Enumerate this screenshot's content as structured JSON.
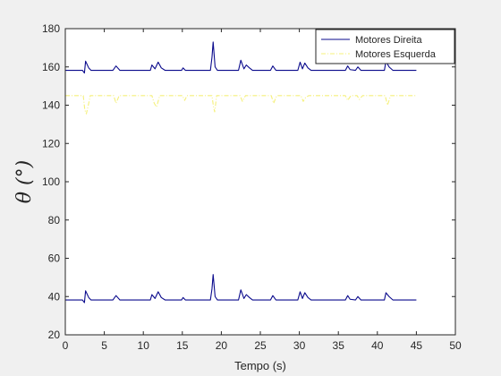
{
  "chart_data": {
    "type": "line",
    "title": "",
    "xlabel": "Tempo (s)",
    "ylabel": "θ (°)",
    "xlim": [
      0,
      50
    ],
    "ylim": [
      20,
      180
    ],
    "xticks": [
      0,
      5,
      10,
      15,
      20,
      25,
      30,
      35,
      40,
      45,
      50
    ],
    "yticks": [
      20,
      40,
      60,
      80,
      100,
      120,
      140,
      160,
      180
    ],
    "grid": false,
    "legend_position": "top-right",
    "series": [
      {
        "name": "Motores Direita",
        "color": "#0a0a8c",
        "style": "solid",
        "points": [
          [
            0,
            158.2
          ],
          [
            2.2,
            158.2
          ],
          [
            2.45,
            156.8
          ],
          [
            2.6,
            163
          ],
          [
            3.0,
            159.5
          ],
          [
            3.3,
            158.2
          ],
          [
            6.1,
            158.2
          ],
          [
            6.5,
            160.5
          ],
          [
            7.0,
            158.2
          ],
          [
            10.9,
            158.2
          ],
          [
            11.1,
            161
          ],
          [
            11.5,
            159
          ],
          [
            11.9,
            162.5
          ],
          [
            12.3,
            159.5
          ],
          [
            12.8,
            158.2
          ],
          [
            14.9,
            158.2
          ],
          [
            15.1,
            159.5
          ],
          [
            15.4,
            158.2
          ],
          [
            18.6,
            158.2
          ],
          [
            18.8,
            165
          ],
          [
            18.95,
            173
          ],
          [
            19.2,
            160
          ],
          [
            19.5,
            158.2
          ],
          [
            22.2,
            158.2
          ],
          [
            22.5,
            163.5
          ],
          [
            22.9,
            159
          ],
          [
            23.2,
            161
          ],
          [
            23.6,
            159.5
          ],
          [
            24.0,
            158.2
          ],
          [
            26.3,
            158.2
          ],
          [
            26.6,
            160.5
          ],
          [
            27.0,
            158.2
          ],
          [
            29.8,
            158.2
          ],
          [
            30.1,
            162.5
          ],
          [
            30.4,
            159
          ],
          [
            30.7,
            162
          ],
          [
            31.1,
            159.5
          ],
          [
            31.5,
            158.2
          ],
          [
            35.9,
            158.2
          ],
          [
            36.2,
            160.5
          ],
          [
            36.5,
            158.6
          ],
          [
            37.2,
            158.2
          ],
          [
            37.5,
            160
          ],
          [
            37.9,
            158.2
          ],
          [
            40.9,
            158.2
          ],
          [
            41.1,
            163
          ],
          [
            41.5,
            160
          ],
          [
            42.0,
            158.2
          ],
          [
            45,
            158.2
          ]
        ]
      },
      {
        "name": "Motores Esquerda",
        "color": "#f5f07a",
        "style": "dashdot",
        "points": [
          [
            0,
            145
          ],
          [
            2.3,
            145
          ],
          [
            2.5,
            137.5
          ],
          [
            2.7,
            135.5
          ],
          [
            2.95,
            140
          ],
          [
            3.2,
            145
          ],
          [
            6.2,
            145
          ],
          [
            6.5,
            141
          ],
          [
            6.9,
            145
          ],
          [
            11.1,
            145
          ],
          [
            11.4,
            141
          ],
          [
            11.7,
            139
          ],
          [
            12.1,
            145
          ],
          [
            15.0,
            145
          ],
          [
            15.3,
            142.5
          ],
          [
            15.6,
            145
          ],
          [
            18.8,
            145
          ],
          [
            19.0,
            139
          ],
          [
            19.15,
            136.5
          ],
          [
            19.4,
            145
          ],
          [
            22.4,
            145
          ],
          [
            22.7,
            142
          ],
          [
            23.1,
            145
          ],
          [
            26.4,
            145
          ],
          [
            26.7,
            141
          ],
          [
            27.1,
            145
          ],
          [
            30.2,
            145
          ],
          [
            30.5,
            142
          ],
          [
            30.8,
            144
          ],
          [
            31.2,
            145
          ],
          [
            35.9,
            145
          ],
          [
            36.2,
            142.5
          ],
          [
            36.6,
            145
          ],
          [
            37.4,
            145
          ],
          [
            37.7,
            143
          ],
          [
            38.1,
            145
          ],
          [
            41.0,
            145
          ],
          [
            41.3,
            140
          ],
          [
            41.7,
            145
          ],
          [
            45,
            145
          ]
        ]
      },
      {
        "name": "",
        "color": "#0a0a8c",
        "style": "solid",
        "points": [
          [
            0,
            38.2
          ],
          [
            2.2,
            38.2
          ],
          [
            2.45,
            36.8
          ],
          [
            2.6,
            43
          ],
          [
            3.0,
            39.5
          ],
          [
            3.3,
            38.2
          ],
          [
            6.1,
            38.2
          ],
          [
            6.5,
            40.5
          ],
          [
            7.0,
            38.2
          ],
          [
            10.9,
            38.2
          ],
          [
            11.1,
            41
          ],
          [
            11.5,
            39
          ],
          [
            11.9,
            42.5
          ],
          [
            12.3,
            39.5
          ],
          [
            12.8,
            38.2
          ],
          [
            14.9,
            38.2
          ],
          [
            15.1,
            39.5
          ],
          [
            15.4,
            38.2
          ],
          [
            18.6,
            38.2
          ],
          [
            18.8,
            44
          ],
          [
            18.95,
            51.5
          ],
          [
            19.2,
            40
          ],
          [
            19.5,
            38.2
          ],
          [
            22.2,
            38.2
          ],
          [
            22.5,
            43.5
          ],
          [
            22.9,
            39
          ],
          [
            23.2,
            41
          ],
          [
            23.6,
            39.5
          ],
          [
            24.0,
            38.2
          ],
          [
            26.3,
            38.2
          ],
          [
            26.6,
            40.5
          ],
          [
            27.0,
            38.2
          ],
          [
            29.8,
            38.2
          ],
          [
            30.1,
            42.5
          ],
          [
            30.4,
            39
          ],
          [
            30.7,
            42
          ],
          [
            31.1,
            39.5
          ],
          [
            31.5,
            38.2
          ],
          [
            35.9,
            38.2
          ],
          [
            36.2,
            40.5
          ],
          [
            36.5,
            38.6
          ],
          [
            37.2,
            38.2
          ],
          [
            37.5,
            40
          ],
          [
            37.9,
            38.2
          ],
          [
            40.9,
            38.2
          ],
          [
            41.1,
            42
          ],
          [
            41.5,
            40
          ],
          [
            42.0,
            38.2
          ],
          [
            45,
            38.2
          ]
        ]
      }
    ]
  }
}
